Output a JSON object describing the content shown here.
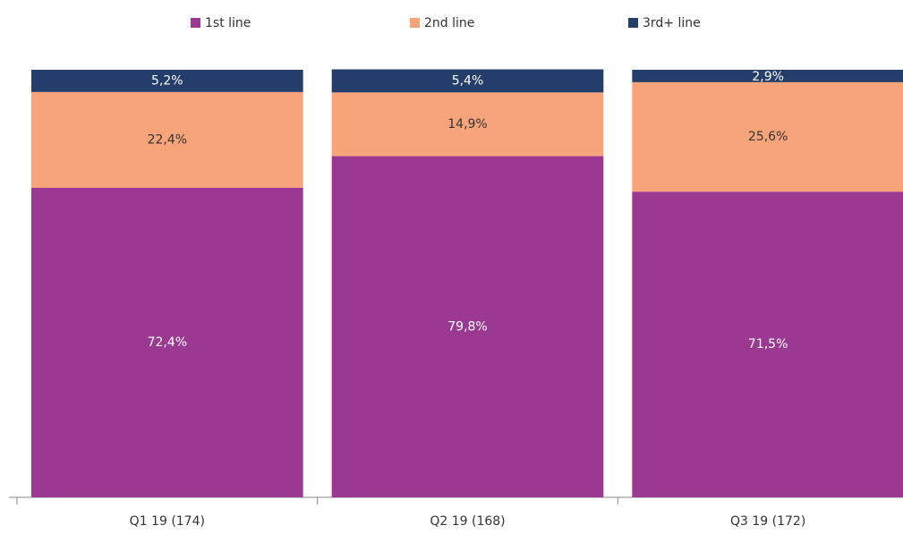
{
  "chart_data": {
    "type": "stacked_bar",
    "categories": [
      "Q1 19 (174)",
      "Q2 19 (168)",
      "Q3 19 (172)"
    ],
    "series": [
      {
        "name": "1st line",
        "color": "#9b3891",
        "values": [
          72.4,
          79.8,
          71.5
        ],
        "value_labels": [
          "72,4%",
          "79,8%",
          "71,5%"
        ]
      },
      {
        "name": "2nd line",
        "color": "#f7a47a",
        "values": [
          22.4,
          14.9,
          25.6
        ],
        "value_labels": [
          "22,4%",
          "14,9%",
          "25,6%"
        ]
      },
      {
        "name": "3rd+ line",
        "color": "#253d6b",
        "values": [
          5.2,
          5.4,
          2.9
        ],
        "value_labels": [
          "5,2%",
          "5,4%",
          "2,9%"
        ]
      }
    ],
    "ylim": [
      0,
      100
    ],
    "legend": "top"
  }
}
